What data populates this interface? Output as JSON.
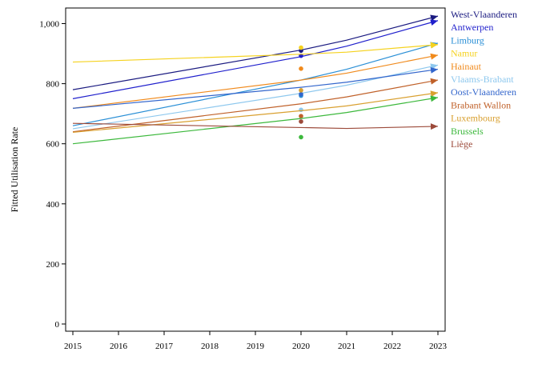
{
  "chart_data": {
    "type": "line",
    "ylabel": "Fitted Utilisation Rate",
    "xlabel": "",
    "x": [
      "2015",
      "2016",
      "2017",
      "2018",
      "2019",
      "2020",
      "2021",
      "2022",
      "2023"
    ],
    "xlim": [
      2015,
      2023
    ],
    "ylim": [
      0,
      1000
    ],
    "yticks": [
      0,
      200,
      400,
      600,
      800,
      1000
    ],
    "ytick_labels": [
      "0",
      "200",
      "400",
      "600",
      "800",
      "1,000"
    ],
    "grid": false,
    "legend_position": "right",
    "series": [
      {
        "name": "West-Vlaanderen",
        "color": "#1a1a80",
        "line": [
          {
            "x": 2015,
            "y": 780
          },
          {
            "x": 2020,
            "y": 912
          },
          {
            "x": 2021,
            "y": 945
          },
          {
            "x": 2023,
            "y": 1025
          }
        ],
        "observed": {
          "x": 2020,
          "y": 910
        }
      },
      {
        "name": "Antwerpen",
        "color": "#1f1fcc",
        "line": [
          {
            "x": 2015,
            "y": 750
          },
          {
            "x": 2020,
            "y": 890
          },
          {
            "x": 2021,
            "y": 925
          },
          {
            "x": 2023,
            "y": 1010
          }
        ],
        "observed": {
          "x": 2020,
          "y": 893
        }
      },
      {
        "name": "Limburg",
        "color": "#2a8fd6",
        "line": [
          {
            "x": 2015,
            "y": 660
          },
          {
            "x": 2020,
            "y": 812
          },
          {
            "x": 2021,
            "y": 848
          },
          {
            "x": 2023,
            "y": 935
          }
        ],
        "observed": {
          "x": 2020,
          "y": 760
        }
      },
      {
        "name": "Namur",
        "color": "#f5d21e",
        "line": [
          {
            "x": 2015,
            "y": 872
          },
          {
            "x": 2020,
            "y": 898
          },
          {
            "x": 2021,
            "y": 905
          },
          {
            "x": 2023,
            "y": 930
          }
        ],
        "observed": {
          "x": 2020,
          "y": 920
        }
      },
      {
        "name": "Hainaut",
        "color": "#f08a1c",
        "line": [
          {
            "x": 2015,
            "y": 718
          },
          {
            "x": 2020,
            "y": 812
          },
          {
            "x": 2021,
            "y": 835
          },
          {
            "x": 2023,
            "y": 895
          }
        ],
        "observed": {
          "x": 2020,
          "y": 850
        }
      },
      {
        "name": "Vlaams-Brabant",
        "color": "#8ec8ee",
        "line": [
          {
            "x": 2015,
            "y": 650
          },
          {
            "x": 2020,
            "y": 768
          },
          {
            "x": 2021,
            "y": 795
          },
          {
            "x": 2023,
            "y": 862
          }
        ],
        "observed": {
          "x": 2020,
          "y": 713
        }
      },
      {
        "name": "Oost-Vlaanderen",
        "color": "#3366cc",
        "line": [
          {
            "x": 2015,
            "y": 718
          },
          {
            "x": 2020,
            "y": 788
          },
          {
            "x": 2021,
            "y": 805
          },
          {
            "x": 2023,
            "y": 848
          }
        ],
        "observed": {
          "x": 2020,
          "y": 765
        }
      },
      {
        "name": "Brabant Wallon",
        "color": "#c0612a",
        "line": [
          {
            "x": 2015,
            "y": 640
          },
          {
            "x": 2020,
            "y": 733
          },
          {
            "x": 2021,
            "y": 756
          },
          {
            "x": 2023,
            "y": 812
          }
        ],
        "observed": {
          "x": 2020,
          "y": 692
        }
      },
      {
        "name": "Luxembourg",
        "color": "#d9a030",
        "line": [
          {
            "x": 2015,
            "y": 638
          },
          {
            "x": 2020,
            "y": 710
          },
          {
            "x": 2021,
            "y": 726
          },
          {
            "x": 2023,
            "y": 770
          }
        ],
        "observed": {
          "x": 2020,
          "y": 778
        }
      },
      {
        "name": "Brussels",
        "color": "#3cb83c",
        "line": [
          {
            "x": 2015,
            "y": 600
          },
          {
            "x": 2020,
            "y": 684
          },
          {
            "x": 2021,
            "y": 704
          },
          {
            "x": 2023,
            "y": 754
          }
        ],
        "observed": {
          "x": 2020,
          "y": 622
        }
      },
      {
        "name": "Liège",
        "color": "#9c4a3a",
        "line": [
          {
            "x": 2015,
            "y": 668
          },
          {
            "x": 2020,
            "y": 654
          },
          {
            "x": 2021,
            "y": 651
          },
          {
            "x": 2023,
            "y": 658
          }
        ],
        "observed": {
          "x": 2020,
          "y": 674
        }
      }
    ]
  }
}
